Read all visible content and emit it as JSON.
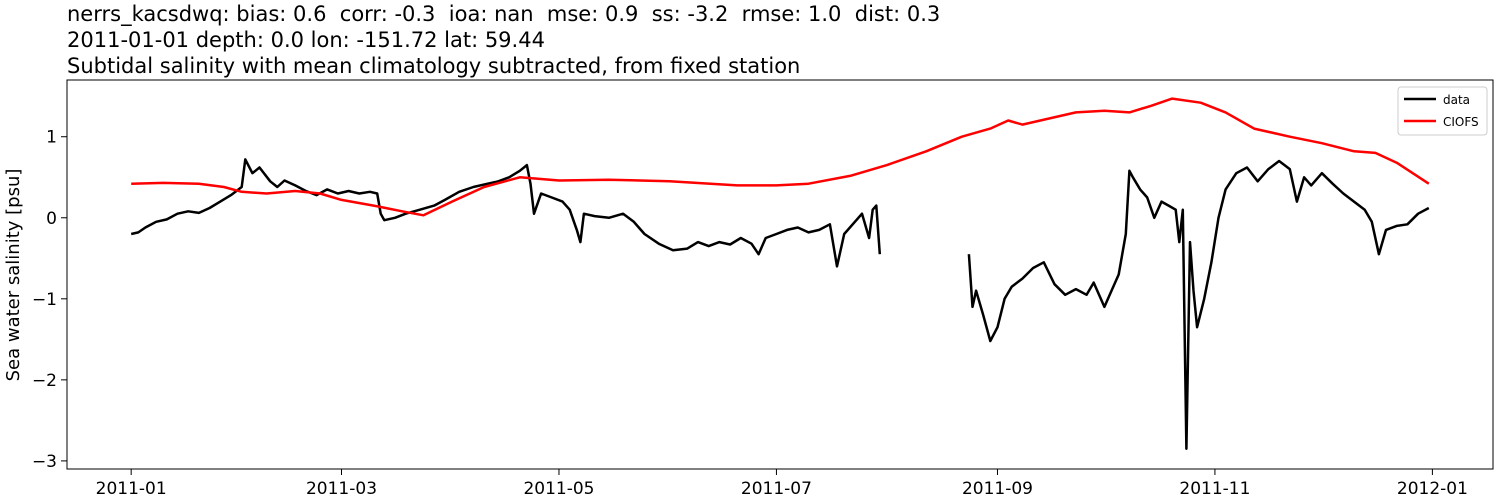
{
  "chart_data": {
    "type": "line",
    "title_lines": [
      "nerrs_kacsdwq: bias: 0.6  corr: -0.3  ioa: nan  mse: 0.9  ss: -3.2  rmse: 1.0  dist: 0.3",
      "2011-01-01 depth: 0.0 lon: -151.72 lat: 59.44",
      "Subtidal salinity with mean climatology subtracted, from fixed station"
    ],
    "xlabel": "",
    "ylabel": "Sea water salinity [psu]",
    "xlim": [
      "2010-12-14",
      "2012-01-18"
    ],
    "ylim": [
      -3.1,
      1.7
    ],
    "x_ticks": [
      "2011-01",
      "2011-03",
      "2011-05",
      "2011-07",
      "2011-09",
      "2011-11",
      "2012-01"
    ],
    "y_ticks": [
      -3,
      -2,
      -1,
      0,
      1
    ],
    "y_tick_labels": [
      "−3",
      "−2",
      "−1",
      "0",
      "1"
    ],
    "grid": false,
    "legend": "top-right",
    "series": [
      {
        "name": "data",
        "color": "#000000",
        "segments": [
          [
            [
              "2011-01-01",
              -0.2
            ],
            [
              "2011-01-03",
              -0.18
            ],
            [
              "2011-01-05",
              -0.12
            ],
            [
              "2011-01-08",
              -0.05
            ],
            [
              "2011-01-11",
              -0.02
            ],
            [
              "2011-01-14",
              0.05
            ],
            [
              "2011-01-17",
              0.08
            ],
            [
              "2011-01-20",
              0.06
            ],
            [
              "2011-01-23",
              0.12
            ],
            [
              "2011-01-26",
              0.2
            ],
            [
              "2011-01-29",
              0.28
            ],
            [
              "2011-02-01",
              0.38
            ],
            [
              "2011-02-02",
              0.72
            ],
            [
              "2011-02-04",
              0.55
            ],
            [
              "2011-02-06",
              0.62
            ],
            [
              "2011-02-09",
              0.45
            ],
            [
              "2011-02-11",
              0.38
            ],
            [
              "2011-02-13",
              0.46
            ],
            [
              "2011-02-16",
              0.4
            ],
            [
              "2011-02-19",
              0.33
            ],
            [
              "2011-02-22",
              0.28
            ],
            [
              "2011-02-25",
              0.35
            ],
            [
              "2011-02-28",
              0.3
            ],
            [
              "2011-03-03",
              0.33
            ],
            [
              "2011-03-06",
              0.3
            ],
            [
              "2011-03-09",
              0.32
            ],
            [
              "2011-03-11",
              0.3
            ],
            [
              "2011-03-12",
              0.05
            ],
            [
              "2011-03-13",
              -0.03
            ],
            [
              "2011-03-16",
              0.0
            ],
            [
              "2011-03-19",
              0.05
            ],
            [
              "2011-03-23",
              0.1
            ],
            [
              "2011-03-27",
              0.15
            ],
            [
              "2011-03-30",
              0.22
            ],
            [
              "2011-04-03",
              0.32
            ],
            [
              "2011-04-07",
              0.38
            ],
            [
              "2011-04-11",
              0.42
            ],
            [
              "2011-04-14",
              0.45
            ],
            [
              "2011-04-17",
              0.5
            ],
            [
              "2011-04-20",
              0.58
            ],
            [
              "2011-04-22",
              0.65
            ],
            [
              "2011-04-23",
              0.42
            ],
            [
              "2011-04-24",
              0.05
            ],
            [
              "2011-04-26",
              0.3
            ],
            [
              "2011-04-29",
              0.25
            ],
            [
              "2011-05-02",
              0.2
            ],
            [
              "2011-05-04",
              0.1
            ],
            [
              "2011-05-06",
              -0.15
            ],
            [
              "2011-05-07",
              -0.3
            ],
            [
              "2011-05-08",
              0.05
            ],
            [
              "2011-05-11",
              0.02
            ],
            [
              "2011-05-15",
              0.0
            ],
            [
              "2011-05-19",
              0.05
            ],
            [
              "2011-05-22",
              -0.05
            ],
            [
              "2011-05-25",
              -0.2
            ],
            [
              "2011-05-29",
              -0.32
            ],
            [
              "2011-06-02",
              -0.4
            ],
            [
              "2011-06-06",
              -0.38
            ],
            [
              "2011-06-09",
              -0.3
            ],
            [
              "2011-06-12",
              -0.35
            ],
            [
              "2011-06-15",
              -0.3
            ],
            [
              "2011-06-18",
              -0.33
            ],
            [
              "2011-06-21",
              -0.25
            ],
            [
              "2011-06-24",
              -0.32
            ],
            [
              "2011-06-26",
              -0.45
            ],
            [
              "2011-06-28",
              -0.25
            ],
            [
              "2011-07-01",
              -0.2
            ],
            [
              "2011-07-04",
              -0.15
            ],
            [
              "2011-07-07",
              -0.12
            ],
            [
              "2011-07-10",
              -0.18
            ],
            [
              "2011-07-13",
              -0.15
            ],
            [
              "2011-07-16",
              -0.08
            ],
            [
              "2011-07-18",
              -0.6
            ],
            [
              "2011-07-20",
              -0.2
            ],
            [
              "2011-07-23",
              -0.05
            ],
            [
              "2011-07-25",
              0.05
            ],
            [
              "2011-07-27",
              -0.25
            ],
            [
              "2011-07-28",
              0.1
            ],
            [
              "2011-07-29",
              0.15
            ],
            [
              "2011-07-30",
              -0.45
            ]
          ],
          [
            [
              "2011-08-24",
              -0.45
            ],
            [
              "2011-08-25",
              -1.1
            ],
            [
              "2011-08-26",
              -0.9
            ],
            [
              "2011-08-28",
              -1.2
            ],
            [
              "2011-08-30",
              -1.52
            ],
            [
              "2011-09-01",
              -1.35
            ],
            [
              "2011-09-03",
              -1.0
            ],
            [
              "2011-09-05",
              -0.85
            ],
            [
              "2011-09-08",
              -0.75
            ],
            [
              "2011-09-11",
              -0.62
            ],
            [
              "2011-09-14",
              -0.55
            ],
            [
              "2011-09-17",
              -0.82
            ],
            [
              "2011-09-20",
              -0.95
            ],
            [
              "2011-09-23",
              -0.88
            ],
            [
              "2011-09-26",
              -0.95
            ],
            [
              "2011-09-28",
              -0.8
            ],
            [
              "2011-10-01",
              -1.1
            ],
            [
              "2011-10-03",
              -0.9
            ],
            [
              "2011-10-05",
              -0.7
            ],
            [
              "2011-10-07",
              -0.2
            ],
            [
              "2011-10-08",
              0.58
            ],
            [
              "2011-10-09",
              0.5
            ],
            [
              "2011-10-11",
              0.35
            ],
            [
              "2011-10-13",
              0.25
            ],
            [
              "2011-10-15",
              0.0
            ],
            [
              "2011-10-17",
              0.2
            ],
            [
              "2011-10-19",
              0.15
            ],
            [
              "2011-10-21",
              0.1
            ],
            [
              "2011-10-22",
              -0.3
            ],
            [
              "2011-10-23",
              0.1
            ],
            [
              "2011-10-24",
              -2.85
            ],
            [
              "2011-10-25",
              -0.3
            ],
            [
              "2011-10-26",
              -0.9
            ],
            [
              "2011-10-27",
              -1.35
            ],
            [
              "2011-10-29",
              -1.0
            ],
            [
              "2011-10-31",
              -0.55
            ],
            [
              "2011-11-02",
              0.0
            ],
            [
              "2011-11-04",
              0.35
            ],
            [
              "2011-11-07",
              0.55
            ],
            [
              "2011-11-10",
              0.62
            ],
            [
              "2011-11-13",
              0.45
            ],
            [
              "2011-11-16",
              0.6
            ],
            [
              "2011-11-19",
              0.7
            ],
            [
              "2011-11-22",
              0.6
            ],
            [
              "2011-11-24",
              0.2
            ],
            [
              "2011-11-26",
              0.5
            ],
            [
              "2011-11-28",
              0.4
            ],
            [
              "2011-12-01",
              0.55
            ],
            [
              "2011-12-04",
              0.42
            ],
            [
              "2011-12-07",
              0.3
            ],
            [
              "2011-12-10",
              0.2
            ],
            [
              "2011-12-13",
              0.1
            ],
            [
              "2011-12-15",
              -0.05
            ],
            [
              "2011-12-17",
              -0.45
            ],
            [
              "2011-12-19",
              -0.15
            ],
            [
              "2011-12-22",
              -0.1
            ],
            [
              "2011-12-25",
              -0.08
            ],
            [
              "2011-12-28",
              0.05
            ],
            [
              "2011-12-31",
              0.12
            ]
          ]
        ]
      },
      {
        "name": "CIOFS",
        "color": "#ff0000",
        "segments": [
          [
            [
              "2011-01-01",
              0.42
            ],
            [
              "2011-01-10",
              0.43
            ],
            [
              "2011-01-20",
              0.42
            ],
            [
              "2011-01-27",
              0.38
            ],
            [
              "2011-02-01",
              0.32
            ],
            [
              "2011-02-08",
              0.3
            ],
            [
              "2011-02-16",
              0.33
            ],
            [
              "2011-02-23",
              0.3
            ],
            [
              "2011-03-01",
              0.22
            ],
            [
              "2011-03-10",
              0.15
            ],
            [
              "2011-03-18",
              0.08
            ],
            [
              "2011-03-24",
              0.03
            ],
            [
              "2011-04-01",
              0.2
            ],
            [
              "2011-04-10",
              0.38
            ],
            [
              "2011-04-20",
              0.5
            ],
            [
              "2011-05-01",
              0.46
            ],
            [
              "2011-05-15",
              0.47
            ],
            [
              "2011-06-01",
              0.45
            ],
            [
              "2011-06-20",
              0.4
            ],
            [
              "2011-07-01",
              0.4
            ],
            [
              "2011-07-10",
              0.42
            ],
            [
              "2011-07-22",
              0.52
            ],
            [
              "2011-08-01",
              0.65
            ],
            [
              "2011-08-12",
              0.82
            ],
            [
              "2011-08-22",
              1.0
            ],
            [
              "2011-08-30",
              1.1
            ],
            [
              "2011-09-04",
              1.2
            ],
            [
              "2011-09-08",
              1.15
            ],
            [
              "2011-09-15",
              1.22
            ],
            [
              "2011-09-23",
              1.3
            ],
            [
              "2011-10-01",
              1.32
            ],
            [
              "2011-10-08",
              1.3
            ],
            [
              "2011-10-14",
              1.38
            ],
            [
              "2011-10-20",
              1.47
            ],
            [
              "2011-10-28",
              1.42
            ],
            [
              "2011-11-04",
              1.3
            ],
            [
              "2011-11-12",
              1.1
            ],
            [
              "2011-11-22",
              1.0
            ],
            [
              "2011-12-01",
              0.92
            ],
            [
              "2011-12-10",
              0.82
            ],
            [
              "2011-12-16",
              0.8
            ],
            [
              "2011-12-22",
              0.68
            ],
            [
              "2011-12-31",
              0.42
            ]
          ]
        ]
      }
    ]
  }
}
